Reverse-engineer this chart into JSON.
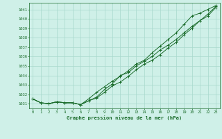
{
  "title": "Graphe pression niveau de la mer (hPa)",
  "background_color": "#cff0e8",
  "grid_color": "#a8d8cc",
  "line_color": "#1a6b2a",
  "text_color": "#1a6b2a",
  "xlim": [
    -0.5,
    23.5
  ],
  "ylim": [
    1030.5,
    1041.7
  ],
  "yticks": [
    1031,
    1032,
    1033,
    1034,
    1035,
    1036,
    1037,
    1038,
    1039,
    1040,
    1041
  ],
  "xticks": [
    0,
    1,
    2,
    3,
    4,
    5,
    6,
    7,
    8,
    9,
    10,
    11,
    12,
    13,
    14,
    15,
    16,
    17,
    18,
    19,
    20,
    21,
    22,
    23
  ],
  "series1": [
    1031.5,
    1031.1,
    1031.0,
    1031.2,
    1031.1,
    1031.1,
    1030.9,
    1031.3,
    1031.6,
    1032.2,
    1032.9,
    1033.3,
    1033.9,
    1034.6,
    1035.2,
    1035.6,
    1036.2,
    1036.9,
    1037.5,
    1038.3,
    1039.0,
    1039.8,
    1040.3,
    1041.2
  ],
  "series2": [
    1031.5,
    1031.1,
    1031.0,
    1031.2,
    1031.1,
    1031.1,
    1030.9,
    1031.5,
    1032.2,
    1032.8,
    1033.4,
    1033.9,
    1034.5,
    1035.2,
    1035.6,
    1036.4,
    1037.1,
    1037.8,
    1038.5,
    1039.4,
    1040.3,
    1040.6,
    1041.0,
    1041.4
  ],
  "series3": [
    1031.5,
    1031.1,
    1031.0,
    1031.2,
    1031.1,
    1031.1,
    1030.9,
    1031.3,
    1031.7,
    1032.5,
    1033.1,
    1034.0,
    1034.3,
    1035.0,
    1035.5,
    1036.0,
    1036.7,
    1037.2,
    1037.8,
    1038.5,
    1039.2,
    1039.8,
    1040.5,
    1041.3
  ]
}
